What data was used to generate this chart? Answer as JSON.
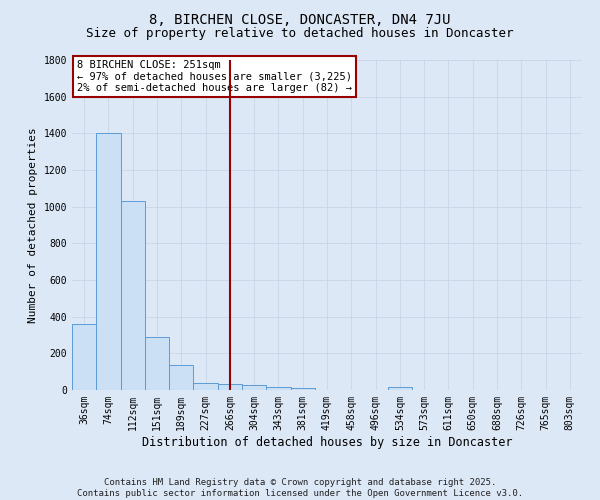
{
  "title1": "8, BIRCHEN CLOSE, DONCASTER, DN4 7JU",
  "title2": "Size of property relative to detached houses in Doncaster",
  "xlabel": "Distribution of detached houses by size in Doncaster",
  "ylabel": "Number of detached properties",
  "categories": [
    "36sqm",
    "74sqm",
    "112sqm",
    "151sqm",
    "189sqm",
    "227sqm",
    "266sqm",
    "304sqm",
    "343sqm",
    "381sqm",
    "419sqm",
    "458sqm",
    "496sqm",
    "534sqm",
    "573sqm",
    "611sqm",
    "650sqm",
    "688sqm",
    "726sqm",
    "765sqm",
    "803sqm"
  ],
  "values": [
    360,
    1400,
    1030,
    290,
    135,
    40,
    35,
    25,
    15,
    10,
    0,
    0,
    0,
    15,
    0,
    0,
    0,
    0,
    0,
    0,
    0
  ],
  "bar_color": "#cce0f5",
  "bar_edge_color": "#5b9bd5",
  "grid_color": "#c8d4e8",
  "background_color": "#dde8f7",
  "vline_x_index": 6,
  "vline_color": "#990000",
  "annotation_line1": "8 BIRCHEN CLOSE: 251sqm",
  "annotation_line2": "← 97% of detached houses are smaller (3,225)",
  "annotation_line3": "2% of semi-detached houses are larger (82) →",
  "annotation_box_color": "#ffffff",
  "annotation_border_color": "#990000",
  "ylim": [
    0,
    1800
  ],
  "yticks": [
    0,
    200,
    400,
    600,
    800,
    1000,
    1200,
    1400,
    1600,
    1800
  ],
  "footer1": "Contains HM Land Registry data © Crown copyright and database right 2025.",
  "footer2": "Contains public sector information licensed under the Open Government Licence v3.0.",
  "title_fontsize": 10,
  "subtitle_fontsize": 9,
  "tick_fontsize": 7,
  "ylabel_fontsize": 8,
  "xlabel_fontsize": 8.5,
  "footer_fontsize": 6.5,
  "ann_fontsize": 7.5
}
